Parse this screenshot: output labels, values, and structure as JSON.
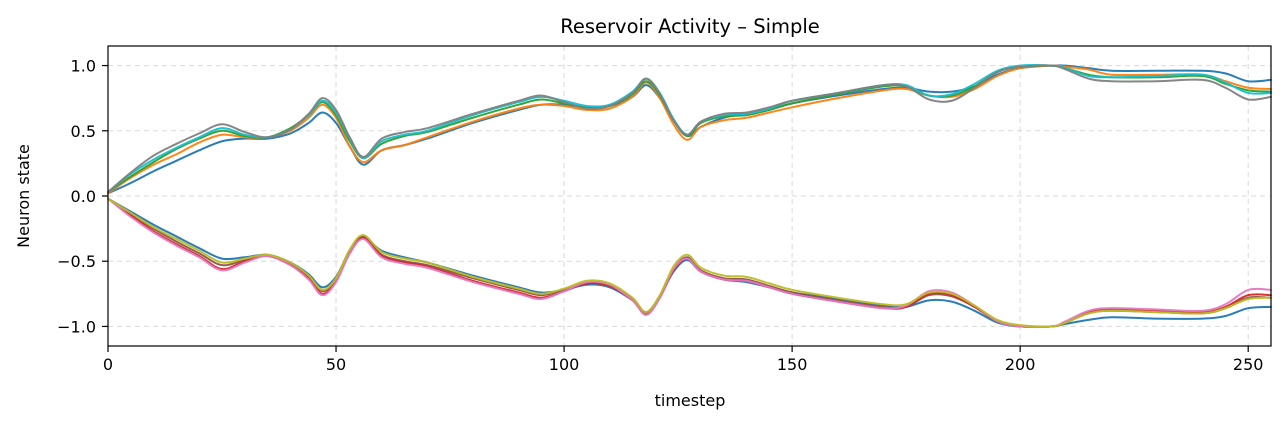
{
  "chart_data": {
    "type": "line",
    "title": "Reservoir Activity – Simple",
    "xlabel": "timestep",
    "ylabel": "Neuron state",
    "xlim": [
      0,
      255
    ],
    "ylim": [
      -1.15,
      1.15
    ],
    "x_ticks": [
      0,
      50,
      100,
      150,
      200,
      250
    ],
    "x_tick_labels": [
      "0",
      "50",
      "100",
      "150",
      "200",
      "250"
    ],
    "y_ticks": [
      1.0,
      0.5,
      0.0,
      -0.5,
      -1.0
    ],
    "y_tick_labels": [
      "1.0",
      "0.5",
      "0.0",
      "−0.5",
      "−1.0"
    ],
    "grid": true,
    "legend": "none",
    "x": [
      0,
      5,
      10,
      15,
      20,
      25,
      30,
      35,
      40,
      44,
      47,
      50,
      53,
      56,
      60,
      65,
      70,
      80,
      90,
      95,
      100,
      105,
      110,
      115,
      118,
      121,
      124,
      127,
      130,
      135,
      140,
      145,
      150,
      160,
      170,
      175,
      180,
      185,
      190,
      195,
      200,
      207,
      210,
      215,
      220,
      230,
      240,
      245,
      250,
      255
    ],
    "series": [
      {
        "color": "#1f77b4",
        "values": [
          0.02,
          0.1,
          0.19,
          0.27,
          0.35,
          0.42,
          0.44,
          0.44,
          0.48,
          0.56,
          0.64,
          0.56,
          0.38,
          0.24,
          0.35,
          0.39,
          0.44,
          0.56,
          0.66,
          0.7,
          0.7,
          0.68,
          0.69,
          0.76,
          0.85,
          0.75,
          0.58,
          0.46,
          0.53,
          0.6,
          0.63,
          0.66,
          0.71,
          0.77,
          0.82,
          0.83,
          0.8,
          0.8,
          0.84,
          0.93,
          0.98,
          1.0,
          1.0,
          0.98,
          0.96,
          0.96,
          0.96,
          0.94,
          0.88,
          0.89
        ]
      },
      {
        "color": "#ff7f0e",
        "values": [
          0.02,
          0.14,
          0.24,
          0.32,
          0.41,
          0.47,
          0.45,
          0.45,
          0.5,
          0.6,
          0.7,
          0.6,
          0.38,
          0.26,
          0.35,
          0.39,
          0.45,
          0.57,
          0.67,
          0.7,
          0.69,
          0.66,
          0.67,
          0.76,
          0.87,
          0.75,
          0.55,
          0.43,
          0.53,
          0.58,
          0.6,
          0.64,
          0.68,
          0.75,
          0.81,
          0.82,
          0.77,
          0.76,
          0.82,
          0.92,
          0.98,
          1.0,
          0.99,
          0.97,
          0.93,
          0.93,
          0.93,
          0.88,
          0.83,
          0.82
        ]
      },
      {
        "color": "#2ca02c",
        "values": [
          0.03,
          0.15,
          0.26,
          0.36,
          0.44,
          0.5,
          0.46,
          0.45,
          0.52,
          0.62,
          0.72,
          0.62,
          0.42,
          0.29,
          0.4,
          0.46,
          0.49,
          0.6,
          0.7,
          0.74,
          0.71,
          0.68,
          0.69,
          0.78,
          0.88,
          0.77,
          0.58,
          0.46,
          0.56,
          0.61,
          0.62,
          0.66,
          0.71,
          0.78,
          0.84,
          0.84,
          0.77,
          0.77,
          0.84,
          0.95,
          0.99,
          1.0,
          0.98,
          0.93,
          0.91,
          0.91,
          0.92,
          0.86,
          0.81,
          0.8
        ]
      },
      {
        "color": "#17becf",
        "values": [
          0.03,
          0.17,
          0.28,
          0.37,
          0.45,
          0.52,
          0.47,
          0.45,
          0.51,
          0.62,
          0.73,
          0.64,
          0.44,
          0.29,
          0.42,
          0.47,
          0.5,
          0.62,
          0.72,
          0.76,
          0.73,
          0.69,
          0.7,
          0.8,
          0.9,
          0.79,
          0.59,
          0.47,
          0.57,
          0.62,
          0.63,
          0.67,
          0.73,
          0.79,
          0.85,
          0.85,
          0.77,
          0.78,
          0.86,
          0.96,
          1.0,
          1.0,
          0.98,
          0.92,
          0.91,
          0.92,
          0.93,
          0.87,
          0.79,
          0.79
        ]
      },
      {
        "color": "#7f7f7f",
        "values": [
          0.03,
          0.18,
          0.31,
          0.4,
          0.48,
          0.55,
          0.49,
          0.45,
          0.51,
          0.63,
          0.75,
          0.66,
          0.45,
          0.3,
          0.44,
          0.49,
          0.52,
          0.63,
          0.73,
          0.77,
          0.72,
          0.67,
          0.69,
          0.79,
          0.9,
          0.78,
          0.58,
          0.47,
          0.57,
          0.63,
          0.64,
          0.68,
          0.73,
          0.79,
          0.85,
          0.84,
          0.74,
          0.73,
          0.83,
          0.95,
          0.99,
          1.0,
          0.97,
          0.9,
          0.88,
          0.88,
          0.89,
          0.83,
          0.74,
          0.76
        ]
      },
      {
        "color": "#1f77b4",
        "values": [
          -0.02,
          -0.12,
          -0.22,
          -0.31,
          -0.4,
          -0.48,
          -0.47,
          -0.45,
          -0.51,
          -0.6,
          -0.7,
          -0.62,
          -0.42,
          -0.32,
          -0.42,
          -0.47,
          -0.51,
          -0.61,
          -0.7,
          -0.74,
          -0.72,
          -0.68,
          -0.7,
          -0.8,
          -0.89,
          -0.77,
          -0.58,
          -0.49,
          -0.58,
          -0.64,
          -0.66,
          -0.7,
          -0.74,
          -0.79,
          -0.84,
          -0.85,
          -0.8,
          -0.81,
          -0.88,
          -0.97,
          -1.0,
          -1.0,
          -0.98,
          -0.95,
          -0.93,
          -0.94,
          -0.94,
          -0.92,
          -0.86,
          -0.85
        ]
      },
      {
        "color": "#8c564b",
        "values": [
          -0.02,
          -0.14,
          -0.25,
          -0.35,
          -0.44,
          -0.53,
          -0.49,
          -0.46,
          -0.52,
          -0.62,
          -0.73,
          -0.64,
          -0.43,
          -0.31,
          -0.45,
          -0.5,
          -0.53,
          -0.63,
          -0.72,
          -0.76,
          -0.72,
          -0.67,
          -0.69,
          -0.79,
          -0.9,
          -0.77,
          -0.56,
          -0.47,
          -0.57,
          -0.63,
          -0.64,
          -0.69,
          -0.74,
          -0.8,
          -0.85,
          -0.85,
          -0.76,
          -0.77,
          -0.85,
          -0.96,
          -1.0,
          -1.0,
          -0.97,
          -0.9,
          -0.88,
          -0.89,
          -0.9,
          -0.86,
          -0.78,
          -0.78
        ]
      },
      {
        "color": "#d62728",
        "values": [
          -0.02,
          -0.15,
          -0.27,
          -0.37,
          -0.46,
          -0.56,
          -0.5,
          -0.46,
          -0.53,
          -0.63,
          -0.75,
          -0.65,
          -0.44,
          -0.32,
          -0.46,
          -0.51,
          -0.54,
          -0.65,
          -0.74,
          -0.78,
          -0.73,
          -0.67,
          -0.69,
          -0.8,
          -0.91,
          -0.78,
          -0.57,
          -0.48,
          -0.58,
          -0.64,
          -0.65,
          -0.7,
          -0.75,
          -0.81,
          -0.86,
          -0.85,
          -0.75,
          -0.76,
          -0.85,
          -0.96,
          -1.0,
          -1.0,
          -0.97,
          -0.89,
          -0.87,
          -0.88,
          -0.89,
          -0.85,
          -0.76,
          -0.76
        ]
      },
      {
        "color": "#e377c2",
        "values": [
          -0.02,
          -0.16,
          -0.28,
          -0.38,
          -0.47,
          -0.57,
          -0.51,
          -0.46,
          -0.53,
          -0.64,
          -0.76,
          -0.66,
          -0.44,
          -0.33,
          -0.47,
          -0.52,
          -0.55,
          -0.66,
          -0.75,
          -0.79,
          -0.73,
          -0.66,
          -0.68,
          -0.8,
          -0.91,
          -0.78,
          -0.56,
          -0.48,
          -0.58,
          -0.64,
          -0.65,
          -0.7,
          -0.75,
          -0.81,
          -0.86,
          -0.84,
          -0.73,
          -0.74,
          -0.84,
          -0.96,
          -1.0,
          -1.0,
          -0.96,
          -0.88,
          -0.86,
          -0.87,
          -0.88,
          -0.83,
          -0.72,
          -0.72
        ]
      },
      {
        "color": "#bcbd22",
        "values": [
          -0.02,
          -0.13,
          -0.24,
          -0.33,
          -0.42,
          -0.51,
          -0.48,
          -0.45,
          -0.51,
          -0.61,
          -0.72,
          -0.63,
          -0.41,
          -0.3,
          -0.43,
          -0.48,
          -0.51,
          -0.62,
          -0.71,
          -0.75,
          -0.71,
          -0.65,
          -0.67,
          -0.78,
          -0.89,
          -0.76,
          -0.54,
          -0.45,
          -0.55,
          -0.61,
          -0.62,
          -0.67,
          -0.72,
          -0.78,
          -0.83,
          -0.83,
          -0.74,
          -0.75,
          -0.84,
          -0.95,
          -0.99,
          -1.0,
          -0.97,
          -0.9,
          -0.88,
          -0.89,
          -0.9,
          -0.86,
          -0.79,
          -0.78
        ]
      }
    ]
  }
}
